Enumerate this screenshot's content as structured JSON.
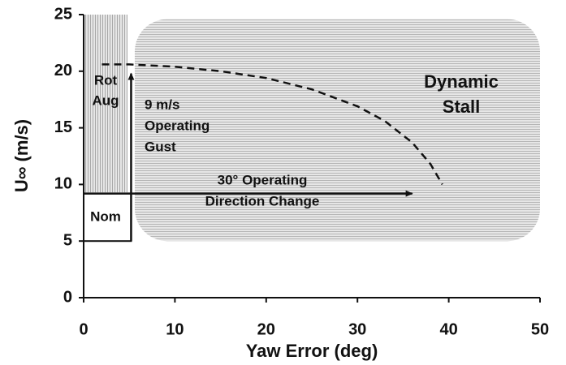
{
  "chart_data": {
    "type": "line",
    "xlabel": "Yaw Error (deg)",
    "ylabel": "U∞ (m/s)",
    "xlim": [
      0,
      50
    ],
    "ylim": [
      0,
      25
    ],
    "xticks": [
      0,
      10,
      20,
      30,
      40,
      50
    ],
    "yticks": [
      0,
      5,
      10,
      15,
      20,
      25
    ],
    "series": [
      {
        "color": "#111111",
        "dash": true,
        "x": [
          2,
          5,
          10,
          15,
          20,
          25,
          30,
          33,
          36,
          38,
          39.3
        ],
        "values": [
          20.6,
          20.6,
          20.4,
          20,
          19.4,
          18.4,
          16.9,
          15.6,
          13.7,
          11.8,
          10
        ]
      }
    ],
    "regions": [
      {
        "label": [
          "Rot",
          "Aug"
        ],
        "x": [
          0,
          4.8
        ],
        "y": [
          9.3,
          25
        ],
        "pattern": "vertical"
      },
      {
        "label": [
          "Dynamic",
          "Stall"
        ],
        "x": [
          5.6,
          50
        ],
        "y": [
          5,
          24.6
        ],
        "pattern": "horizontal"
      },
      {
        "label": [
          "Nom"
        ],
        "x": [
          0,
          5.2
        ],
        "y": [
          5,
          9.2
        ],
        "pattern": "box"
      }
    ],
    "arrows": [
      {
        "label": [
          "9 m/s",
          "Operating",
          "Gust"
        ],
        "x": [
          5.2,
          5.2
        ],
        "y": [
          5,
          19.8
        ]
      },
      {
        "label": [
          "30° Operating",
          "Direction Change"
        ],
        "x": [
          0,
          36
        ],
        "y": [
          9.2,
          9.2
        ]
      }
    ]
  }
}
